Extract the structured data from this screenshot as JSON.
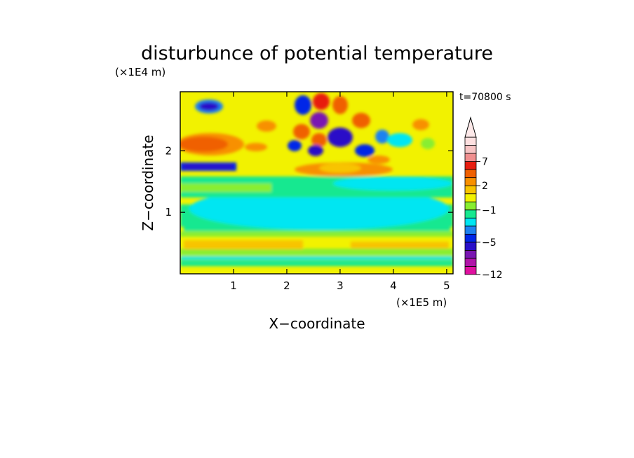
{
  "chart_data": {
    "type": "heatmap",
    "title": "disturbunce of potential temperature",
    "time_label": "t=70800 s",
    "xlabel": "X−coordinate",
    "ylabel": "Z−coordinate",
    "x_scale_label": "(×1E5 m)",
    "y_scale_label": "(×1E4 m)",
    "xlim": [
      0,
      5.12
    ],
    "ylim": [
      0,
      2.96
    ],
    "x_ticks": [
      {
        "value": 1,
        "label": "1"
      },
      {
        "value": 2,
        "label": "2"
      },
      {
        "value": 3,
        "label": "3"
      },
      {
        "value": 4,
        "label": "4"
      },
      {
        "value": 5,
        "label": "5"
      }
    ],
    "y_ticks": [
      {
        "value": 1,
        "label": "1"
      },
      {
        "value": 2,
        "label": "2"
      }
    ],
    "colorbar": {
      "extend": "max",
      "levels": [
        -12,
        -10,
        -8,
        -6,
        -5,
        -4,
        -3,
        -2,
        -1,
        0,
        1,
        2,
        3,
        5,
        7,
        8,
        9,
        10
      ],
      "colors": [
        "#e010a0",
        "#b014a8",
        "#7a16b2",
        "#2a10c8",
        "#0026e8",
        "#1e82f0",
        "#00e6f2",
        "#18e890",
        "#88ee30",
        "#f2f200",
        "#f8c400",
        "#f89000",
        "#f06000",
        "#e81e10",
        "#f08f8f",
        "#f7c4c4",
        "#fde0e0"
      ],
      "tick_labels": [
        {
          "value": 7,
          "label": "7"
        },
        {
          "value": 2,
          "label": "2"
        },
        {
          "value": -1,
          "label": "−1"
        },
        {
          "value": -5,
          "label": "−5"
        },
        {
          "value": -12,
          "label": "−12"
        }
      ]
    }
  }
}
